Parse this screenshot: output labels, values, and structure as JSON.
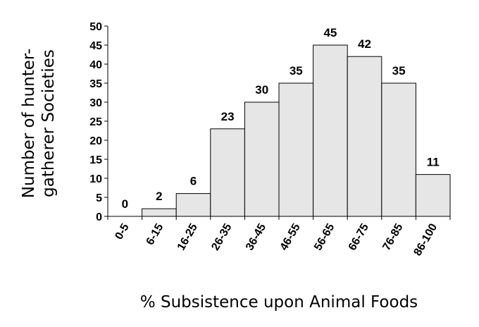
{
  "chart_data": {
    "type": "bar",
    "categories": [
      "0-5",
      "6-15",
      "16-25",
      "26-35",
      "36-45",
      "46-55",
      "56-65",
      "66-75",
      "76-85",
      "86-100"
    ],
    "values": [
      0,
      2,
      6,
      23,
      30,
      35,
      45,
      42,
      35,
      11
    ],
    "xlabel": "% Subsistence upon Animal Foods",
    "ylabel_lines": [
      "Number of hunter-",
      "gatherer Societies"
    ],
    "ylim": [
      0,
      50
    ],
    "yticks": [
      0,
      5,
      10,
      15,
      20,
      25,
      30,
      35,
      40,
      45,
      50
    ],
    "data_labels": true,
    "grid": false,
    "bar_color": "#e6e6e6",
    "bar_edge_color": "#000000"
  }
}
